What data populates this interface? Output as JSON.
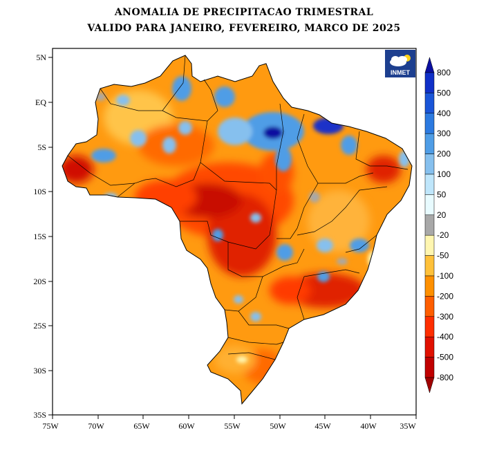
{
  "header": {
    "title_line1": "ANOMALIA DE PRECIPITACAO TRIMESTRAL",
    "title_line2": "VALIDO PARA JANEIRO, FEVEREIRO, MARCO DE 2025"
  },
  "logo": {
    "text": "INMET",
    "icon": "cloud-sun-icon"
  },
  "axes": {
    "lat_ticks": [
      "5N",
      "EQ",
      "5S",
      "10S",
      "15S",
      "20S",
      "25S",
      "30S",
      "35S"
    ],
    "lon_ticks": [
      "75W",
      "70W",
      "65W",
      "60W",
      "55W",
      "50W",
      "45W",
      "40W",
      "35W"
    ]
  },
  "chart_data": {
    "type": "heatmap",
    "title": "ANOMALIA DE PRECIPITACAO TRIMESTRAL",
    "subtitle": "VALIDO PARA JANEIRO, FEVEREIRO, MARCO DE 2025",
    "xlim": [
      -75,
      -35
    ],
    "ylim": [
      -35,
      5
    ],
    "colorbar": {
      "labels": [
        "800",
        "500",
        "400",
        "300",
        "200",
        "100",
        "50",
        "20",
        "-20",
        "-50",
        "-100",
        "-200",
        "-300",
        "-400",
        "-500",
        "-800"
      ],
      "colors": [
        "#0b0fa0",
        "#1030c8",
        "#1a55d8",
        "#2c7ae0",
        "#4f9de6",
        "#86c0ee",
        "#bfe6fb",
        "#e8fbff",
        "#a8a8a8",
        "#fff6b0",
        "#ffc13a",
        "#ff9000",
        "#ff5e00",
        "#ff2e00",
        "#e01000",
        "#c00000",
        "#a00000"
      ]
    }
  },
  "map": {
    "land_base": "#ff9a10",
    "border_color": "#000000"
  }
}
